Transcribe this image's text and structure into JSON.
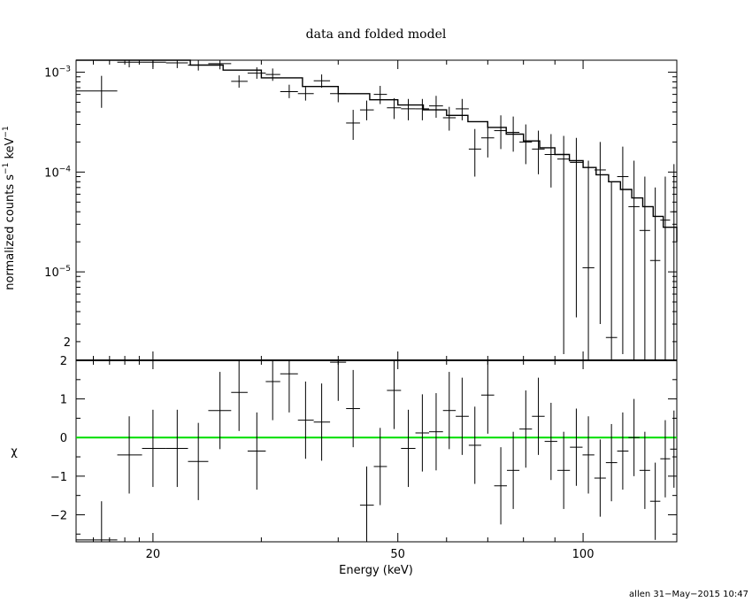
{
  "chart_data": {
    "type": "scatter",
    "title": "data and folded model",
    "xlabel": "Energy (keV)",
    "footer": "allen 31−May−2015 10:47",
    "x_scale": "log",
    "xlim": [
      15,
      142
    ],
    "x_tick_labels": [
      {
        "value": 20,
        "label": "20"
      },
      {
        "value": 50,
        "label": "50"
      },
      {
        "value": 100,
        "label": "100"
      }
    ],
    "top_panel": {
      "ylabel_main": "normalized counts s",
      "ylabel_exp1": "−1",
      "ylabel_mid": " keV",
      "ylabel_exp2": "−1",
      "y_scale": "log",
      "ylim": [
        1.3e-06,
        0.00132
      ],
      "y_tick_labels": [
        {
          "value": 0.001,
          "base": "10",
          "exp": "−3"
        },
        {
          "value": 0.0001,
          "base": "10",
          "exp": "−4"
        },
        {
          "value": 1e-05,
          "base": "10",
          "exp": "−5"
        },
        {
          "value": 2e-06,
          "base": "2",
          "exp": ""
        }
      ],
      "data": [
        {
          "x": 16.5,
          "xlo": 15.0,
          "xhi": 17.5,
          "y": 0.00065,
          "ylo": 0.00044,
          "yhi": 0.00092
        },
        {
          "x": 18.3,
          "xlo": 17.5,
          "xhi": 19.2,
          "y": 0.00126,
          "ylo": 0.00112,
          "yhi": 0.00132
        },
        {
          "x": 20.0,
          "xlo": 19.2,
          "xhi": 21.0,
          "y": 0.00126,
          "ylo": 0.00112,
          "yhi": 0.00132
        },
        {
          "x": 21.9,
          "xlo": 21.0,
          "xhi": 22.8,
          "y": 0.00124,
          "ylo": 0.0011,
          "yhi": 0.00132
        },
        {
          "x": 23.7,
          "xlo": 22.8,
          "xhi": 24.6,
          "y": 0.00118,
          "ylo": 0.00104,
          "yhi": 0.00132
        },
        {
          "x": 25.7,
          "xlo": 24.6,
          "xhi": 26.8,
          "y": 0.00122,
          "ylo": 0.00107,
          "yhi": 0.00132
        },
        {
          "x": 27.6,
          "xlo": 26.8,
          "xhi": 28.5,
          "y": 0.00081,
          "ylo": 0.0007,
          "yhi": 0.00093
        },
        {
          "x": 29.5,
          "xlo": 28.5,
          "xhi": 30.5,
          "y": 0.00098,
          "ylo": 0.00086,
          "yhi": 0.00112
        },
        {
          "x": 31.3,
          "xlo": 30.5,
          "xhi": 32.2,
          "y": 0.00095,
          "ylo": 0.00082,
          "yhi": 0.00109
        },
        {
          "x": 33.3,
          "xlo": 32.2,
          "xhi": 34.4,
          "y": 0.00064,
          "ylo": 0.00055,
          "yhi": 0.00075
        },
        {
          "x": 35.4,
          "xlo": 34.4,
          "xhi": 36.5,
          "y": 0.00061,
          "ylo": 0.00052,
          "yhi": 0.00071
        },
        {
          "x": 37.6,
          "xlo": 36.5,
          "xhi": 38.8,
          "y": 0.00082,
          "ylo": 0.0007,
          "yhi": 0.00095
        },
        {
          "x": 40.0,
          "xlo": 38.8,
          "xhi": 41.2,
          "y": 0.00061,
          "ylo": 0.0005,
          "yhi": 0.00073
        },
        {
          "x": 42.3,
          "xlo": 41.2,
          "xhi": 43.4,
          "y": 0.00031,
          "ylo": 0.00021,
          "yhi": 0.00042
        },
        {
          "x": 44.5,
          "xlo": 43.4,
          "xhi": 45.7,
          "y": 0.00042,
          "ylo": 0.00033,
          "yhi": 0.00052
        },
        {
          "x": 46.8,
          "xlo": 45.7,
          "xhi": 48.0,
          "y": 0.0006,
          "ylo": 0.00048,
          "yhi": 0.00073
        },
        {
          "x": 49.3,
          "xlo": 48.0,
          "xhi": 50.6,
          "y": 0.00044,
          "ylo": 0.00034,
          "yhi": 0.00055
        },
        {
          "x": 52.0,
          "xlo": 50.6,
          "xhi": 53.4,
          "y": 0.00043,
          "ylo": 0.00033,
          "yhi": 0.00054
        },
        {
          "x": 54.8,
          "xlo": 53.4,
          "xhi": 56.2,
          "y": 0.00043,
          "ylo": 0.00033,
          "yhi": 0.00054
        },
        {
          "x": 57.7,
          "xlo": 56.2,
          "xhi": 59.2,
          "y": 0.00046,
          "ylo": 0.00035,
          "yhi": 0.00058
        },
        {
          "x": 60.6,
          "xlo": 59.2,
          "xhi": 62.1,
          "y": 0.00035,
          "ylo": 0.00026,
          "yhi": 0.00045
        },
        {
          "x": 63.6,
          "xlo": 62.1,
          "xhi": 65.2,
          "y": 0.00043,
          "ylo": 0.00033,
          "yhi": 0.00054
        },
        {
          "x": 66.7,
          "xlo": 65.2,
          "xhi": 68.3,
          "y": 0.00017,
          "ylo": 9e-05,
          "yhi": 0.00027
        },
        {
          "x": 70.0,
          "xlo": 68.3,
          "xhi": 71.7,
          "y": 0.00022,
          "ylo": 0.00014,
          "yhi": 0.00032
        },
        {
          "x": 73.5,
          "xlo": 71.7,
          "xhi": 75.2,
          "y": 0.00026,
          "ylo": 0.00017,
          "yhi": 0.00037
        },
        {
          "x": 77.0,
          "xlo": 75.2,
          "xhi": 78.8,
          "y": 0.00025,
          "ylo": 0.00016,
          "yhi": 0.00036
        },
        {
          "x": 80.7,
          "xlo": 78.8,
          "xhi": 82.6,
          "y": 0.0002,
          "ylo": 0.00012,
          "yhi": 0.0003
        },
        {
          "x": 84.6,
          "xlo": 82.6,
          "xhi": 86.6,
          "y": 0.00017,
          "ylo": 9.5e-05,
          "yhi": 0.00026
        },
        {
          "x": 88.7,
          "xlo": 86.6,
          "xhi": 90.8,
          "y": 0.00015,
          "ylo": 7e-05,
          "yhi": 0.00024
        },
        {
          "x": 93.0,
          "xlo": 90.8,
          "xhi": 95.2,
          "y": 0.000135,
          "ylo": 1.5e-06,
          "yhi": 0.00023
        },
        {
          "x": 97.5,
          "xlo": 95.2,
          "xhi": 99.8,
          "y": 0.000125,
          "ylo": 3.5e-06,
          "yhi": 0.00022
        },
        {
          "x": 102.0,
          "xlo": 99.8,
          "xhi": 104.3,
          "y": 1.1e-05,
          "ylo": 1.3e-06,
          "yhi": 0.00013
        },
        {
          "x": 106.6,
          "xlo": 104.3,
          "xhi": 108.9,
          "y": 0.000105,
          "ylo": 3e-06,
          "yhi": 0.0002
        },
        {
          "x": 111.2,
          "xlo": 108.9,
          "xhi": 113.6,
          "y": 2.2e-06,
          "ylo": 1.3e-06,
          "yhi": 8e-05
        },
        {
          "x": 116.0,
          "xlo": 113.6,
          "xhi": 118.5,
          "y": 9e-05,
          "ylo": 1.5e-06,
          "yhi": 0.00018
        },
        {
          "x": 121.0,
          "xlo": 118.5,
          "xhi": 123.5,
          "y": 4.5e-05,
          "ylo": 1.3e-06,
          "yhi": 0.00013
        },
        {
          "x": 126.0,
          "xlo": 123.5,
          "xhi": 128.5,
          "y": 2.6e-05,
          "ylo": 1.3e-06,
          "yhi": 9e-05
        },
        {
          "x": 131.0,
          "xlo": 128.5,
          "xhi": 133.5,
          "y": 1.3e-05,
          "ylo": 1.3e-06,
          "yhi": 7e-05
        },
        {
          "x": 136.0,
          "xlo": 133.5,
          "xhi": 138.5,
          "y": 3.3e-05,
          "ylo": 1.3e-06,
          "yhi": 9e-05
        },
        {
          "x": 140.5,
          "xlo": 138.5,
          "xhi": 142.0,
          "y": 4e-05,
          "ylo": 1.3e-06,
          "yhi": 0.00012
        }
      ],
      "model": [
        {
          "x": 15.0,
          "y": 0.00132
        },
        {
          "x": 20.0,
          "y": 0.00132
        },
        {
          "x": 23.0,
          "y": 0.00118
        },
        {
          "x": 26.0,
          "y": 0.00105
        },
        {
          "x": 30.0,
          "y": 0.00088
        },
        {
          "x": 35.0,
          "y": 0.00072
        },
        {
          "x": 40.0,
          "y": 0.00061
        },
        {
          "x": 45.0,
          "y": 0.00053
        },
        {
          "x": 50.0,
          "y": 0.00047
        },
        {
          "x": 55.0,
          "y": 0.00042
        },
        {
          "x": 60.0,
          "y": 0.00037
        },
        {
          "x": 65.0,
          "y": 0.00032
        },
        {
          "x": 70.0,
          "y": 0.00028
        },
        {
          "x": 75.0,
          "y": 0.00024
        },
        {
          "x": 80.0,
          "y": 0.000205
        },
        {
          "x": 85.0,
          "y": 0.000175
        },
        {
          "x": 90.0,
          "y": 0.00015
        },
        {
          "x": 95.0,
          "y": 0.00013
        },
        {
          "x": 100.0,
          "y": 0.000111
        },
        {
          "x": 105.0,
          "y": 9.4e-05
        },
        {
          "x": 110.0,
          "y": 8e-05
        },
        {
          "x": 115.0,
          "y": 6.7e-05
        },
        {
          "x": 120.0,
          "y": 5.5e-05
        },
        {
          "x": 125.0,
          "y": 4.5e-05
        },
        {
          "x": 130.0,
          "y": 3.6e-05
        },
        {
          "x": 135.0,
          "y": 2.8e-05
        },
        {
          "x": 142.0,
          "y": 2e-05
        }
      ]
    },
    "bottom_panel": {
      "ylabel": "χ",
      "ylim": [
        -2.7,
        2.0
      ],
      "y_ticks": [
        -2,
        -1,
        0,
        1,
        2
      ],
      "y_tick_labels": [
        "−2",
        "−1",
        "0",
        "1",
        "2"
      ],
      "zero_line_color": "#00dd00",
      "data": [
        {
          "x": 16.5,
          "xlo": 15.0,
          "xhi": 17.5,
          "y": -2.65,
          "ylo": -3.5,
          "yhi": -1.65
        },
        {
          "x": 18.3,
          "xlo": 17.5,
          "xhi": 19.2,
          "y": -0.45,
          "ylo": -1.45,
          "yhi": 0.55
        },
        {
          "x": 20.0,
          "xlo": 19.2,
          "xhi": 21.0,
          "y": -0.28,
          "ylo": -1.28,
          "yhi": 0.72
        },
        {
          "x": 21.9,
          "xlo": 21.0,
          "xhi": 22.8,
          "y": -0.28,
          "ylo": -1.28,
          "yhi": 0.72
        },
        {
          "x": 23.7,
          "xlo": 22.8,
          "xhi": 24.6,
          "y": -0.62,
          "ylo": -1.62,
          "yhi": 0.38
        },
        {
          "x": 25.7,
          "xlo": 24.6,
          "xhi": 26.8,
          "y": 0.7,
          "ylo": -0.3,
          "yhi": 1.7
        },
        {
          "x": 27.6,
          "xlo": 26.8,
          "xhi": 28.5,
          "y": 1.17,
          "ylo": 0.17,
          "yhi": 2.17
        },
        {
          "x": 29.5,
          "xlo": 28.5,
          "xhi": 30.5,
          "y": -0.35,
          "ylo": -1.35,
          "yhi": 0.65
        },
        {
          "x": 31.3,
          "xlo": 30.5,
          "xhi": 32.2,
          "y": 1.45,
          "ylo": 0.45,
          "yhi": 2.45
        },
        {
          "x": 33.3,
          "xlo": 32.2,
          "xhi": 34.4,
          "y": 1.65,
          "ylo": 0.65,
          "yhi": 2.65
        },
        {
          "x": 35.4,
          "xlo": 34.4,
          "xhi": 36.5,
          "y": 0.45,
          "ylo": -0.55,
          "yhi": 1.45
        },
        {
          "x": 37.6,
          "xlo": 36.5,
          "xhi": 38.8,
          "y": 0.4,
          "ylo": -0.6,
          "yhi": 1.4
        },
        {
          "x": 40.0,
          "xlo": 38.8,
          "xhi": 41.2,
          "y": 1.95,
          "ylo": 0.95,
          "yhi": 2.95
        },
        {
          "x": 42.3,
          "xlo": 41.2,
          "xhi": 43.4,
          "y": 0.75,
          "ylo": -0.25,
          "yhi": 1.75
        },
        {
          "x": 44.5,
          "xlo": 43.4,
          "xhi": 45.7,
          "y": -1.75,
          "ylo": -2.75,
          "yhi": -0.75
        },
        {
          "x": 46.8,
          "xlo": 45.7,
          "xhi": 48.0,
          "y": -0.75,
          "ylo": -1.75,
          "yhi": 0.25
        },
        {
          "x": 49.3,
          "xlo": 48.0,
          "xhi": 50.6,
          "y": 1.22,
          "ylo": 0.22,
          "yhi": 2.22
        },
        {
          "x": 52.0,
          "xlo": 50.6,
          "xhi": 53.4,
          "y": -0.28,
          "ylo": -1.28,
          "yhi": 0.72
        },
        {
          "x": 54.8,
          "xlo": 53.4,
          "xhi": 56.2,
          "y": 0.12,
          "ylo": -0.88,
          "yhi": 1.12
        },
        {
          "x": 57.7,
          "xlo": 56.2,
          "xhi": 59.2,
          "y": 0.15,
          "ylo": -0.85,
          "yhi": 1.15
        },
        {
          "x": 60.6,
          "xlo": 59.2,
          "xhi": 62.1,
          "y": 0.7,
          "ylo": -0.3,
          "yhi": 1.7
        },
        {
          "x": 63.6,
          "xlo": 62.1,
          "xhi": 65.2,
          "y": 0.55,
          "ylo": -0.45,
          "yhi": 1.55
        },
        {
          "x": 66.7,
          "xlo": 65.2,
          "xhi": 68.3,
          "y": -0.2,
          "ylo": -1.2,
          "yhi": 0.8
        },
        {
          "x": 70.0,
          "xlo": 68.3,
          "xhi": 71.7,
          "y": 1.1,
          "ylo": 0.1,
          "yhi": 2.1
        },
        {
          "x": 73.5,
          "xlo": 71.7,
          "xhi": 75.2,
          "y": -1.25,
          "ylo": -2.25,
          "yhi": -0.25
        },
        {
          "x": 77.0,
          "xlo": 75.2,
          "xhi": 78.8,
          "y": -0.85,
          "ylo": -1.85,
          "yhi": 0.15
        },
        {
          "x": 80.7,
          "xlo": 78.8,
          "xhi": 82.6,
          "y": 0.22,
          "ylo": -0.78,
          "yhi": 1.22
        },
        {
          "x": 84.6,
          "xlo": 82.6,
          "xhi": 86.6,
          "y": 0.55,
          "ylo": -0.45,
          "yhi": 1.55
        },
        {
          "x": 88.7,
          "xlo": 86.6,
          "xhi": 90.8,
          "y": -0.1,
          "ylo": -1.1,
          "yhi": 0.9
        },
        {
          "x": 93.0,
          "xlo": 90.8,
          "xhi": 95.2,
          "y": -0.85,
          "ylo": -1.85,
          "yhi": 0.15
        },
        {
          "x": 97.5,
          "xlo": 95.2,
          "xhi": 99.8,
          "y": -0.25,
          "ylo": -1.25,
          "yhi": 0.75
        },
        {
          "x": 102.0,
          "xlo": 99.8,
          "xhi": 104.3,
          "y": -0.45,
          "ylo": -1.45,
          "yhi": 0.55
        },
        {
          "x": 106.6,
          "xlo": 104.3,
          "xhi": 108.9,
          "y": -1.05,
          "ylo": -2.05,
          "yhi": -0.05
        },
        {
          "x": 111.2,
          "xlo": 108.9,
          "xhi": 113.6,
          "y": -0.65,
          "ylo": -1.65,
          "yhi": 0.35
        },
        {
          "x": 116.0,
          "xlo": 113.6,
          "xhi": 118.5,
          "y": -0.35,
          "ylo": -1.35,
          "yhi": 0.65
        },
        {
          "x": 121.0,
          "xlo": 118.5,
          "xhi": 123.5,
          "y": 0.0,
          "ylo": -1.0,
          "yhi": 1.0
        },
        {
          "x": 126.0,
          "xlo": 123.5,
          "xhi": 128.5,
          "y": -0.85,
          "ylo": -1.85,
          "yhi": 0.15
        },
        {
          "x": 131.0,
          "xlo": 128.5,
          "xhi": 133.5,
          "y": -1.65,
          "ylo": -2.65,
          "yhi": -0.65
        },
        {
          "x": 136.0,
          "xlo": 133.5,
          "xhi": 138.5,
          "y": -0.55,
          "ylo": -1.55,
          "yhi": 0.45
        },
        {
          "x": 140.5,
          "xlo": 138.5,
          "xhi": 142.0,
          "y": -0.3,
          "ylo": -1.3,
          "yhi": 0.7
        }
      ]
    }
  }
}
